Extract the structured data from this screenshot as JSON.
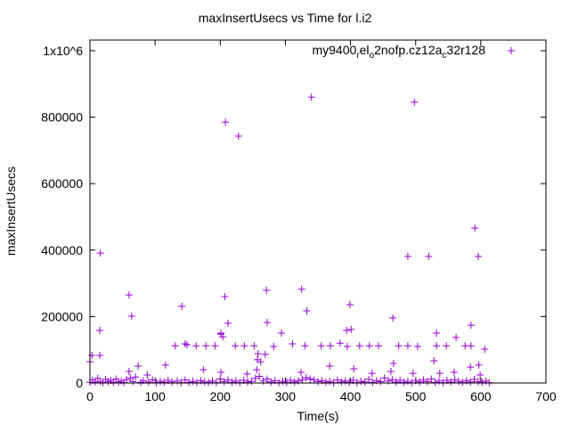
{
  "chart_data": {
    "type": "scatter",
    "title": "maxInsertUsecs vs Time for l.i2",
    "xlabel": "Time(s)",
    "ylabel": "maxInsertUsecs",
    "xlim": [
      0,
      700
    ],
    "ylim": [
      0,
      1032000
    ],
    "x_ticks": [
      0,
      100,
      200,
      300,
      400,
      500,
      600,
      700
    ],
    "x_tick_labels": [
      "0",
      "100",
      "200",
      "300",
      "400",
      "500",
      "600",
      "700"
    ],
    "y_ticks": [
      0,
      200000,
      400000,
      600000,
      800000,
      1000000
    ],
    "y_tick_labels": [
      "0",
      "200000",
      "400000",
      "600000",
      "800000",
      "1x10^6"
    ],
    "grid": false,
    "legend_position": "top-right",
    "series": [
      {
        "name": "my9400_rel_o2nofp.cz12a_c32r128",
        "color": "#9400d3",
        "marker": "plus",
        "points": [
          [
            16,
            391000
          ],
          [
            15,
            158000
          ],
          [
            60,
            265000
          ],
          [
            64,
            201000
          ],
          [
            208,
            785000
          ],
          [
            340,
            860000
          ],
          [
            498,
            845000
          ],
          [
            228,
            743000
          ],
          [
            207,
            260000
          ],
          [
            212,
            180000
          ],
          [
            271,
            279000
          ],
          [
            325,
            282000
          ],
          [
            333,
            217000
          ],
          [
            399,
            236000
          ],
          [
            272,
            182000
          ],
          [
            488,
            381000
          ],
          [
            591,
            466000
          ],
          [
            596,
            381000
          ],
          [
            520,
            381000
          ],
          [
            141,
            231000
          ],
          [
            465,
            196000
          ],
          [
            585,
            174000
          ],
          [
            532,
            150000
          ],
          [
            294,
            150000
          ],
          [
            201,
            150000
          ],
          [
            204,
            139000
          ],
          [
            394,
            158000
          ],
          [
            401,
            161000
          ],
          [
            562,
            137000
          ],
          [
            606,
            102000
          ],
          [
            131,
            112000
          ],
          [
            146,
            118000
          ],
          [
            149,
            115000
          ],
          [
            163,
            112000
          ],
          [
            178,
            112000
          ],
          [
            192,
            112000
          ],
          [
            223,
            112000
          ],
          [
            237,
            112000
          ],
          [
            252,
            112000
          ],
          [
            282,
            110000
          ],
          [
            311,
            118000
          ],
          [
            330,
            112000
          ],
          [
            355,
            112000
          ],
          [
            369,
            112000
          ],
          [
            384,
            120000
          ],
          [
            395,
            110000
          ],
          [
            414,
            112000
          ],
          [
            429,
            112000
          ],
          [
            443,
            112000
          ],
          [
            474,
            112000
          ],
          [
            488,
            112000
          ],
          [
            503,
            110000
          ],
          [
            532,
            112000
          ],
          [
            547,
            112000
          ],
          [
            576,
            112000
          ],
          [
            585,
            112000
          ],
          [
            0,
            64000
          ],
          [
            3,
            83000
          ],
          [
            15,
            83000
          ],
          [
            74,
            51000
          ],
          [
            88,
            24000
          ],
          [
            116,
            54000
          ],
          [
            174,
            40000
          ],
          [
            201,
            147000
          ],
          [
            257,
            70000
          ],
          [
            258,
            88000
          ],
          [
            269,
            86000
          ],
          [
            262,
            64000
          ],
          [
            256,
            40000
          ],
          [
            368,
            51000
          ],
          [
            405,
            43000
          ],
          [
            466,
            59000
          ],
          [
            528,
            67000
          ],
          [
            584,
            48000
          ],
          [
            597,
            54000
          ],
          [
            559,
            32000
          ],
          [
            496,
            29000
          ],
          [
            433,
            29000
          ],
          [
            241,
            27000
          ],
          [
            60,
            35000
          ],
          [
            201,
            32000
          ],
          [
            324,
            32000
          ],
          [
            462,
            35000
          ],
          [
            537,
            29000
          ],
          [
            599,
            24000
          ],
          [
            0,
            2000
          ],
          [
            4,
            9000
          ],
          [
            8,
            3000
          ],
          [
            12,
            14000
          ],
          [
            16,
            5000
          ],
          [
            20,
            1000
          ],
          [
            24,
            11000
          ],
          [
            28,
            4000
          ],
          [
            32,
            8000
          ],
          [
            36,
            2000
          ],
          [
            40,
            12000
          ],
          [
            44,
            3000
          ],
          [
            48,
            6000
          ],
          [
            52,
            1000
          ],
          [
            56,
            10000
          ],
          [
            62,
            15000
          ],
          [
            66,
            4000
          ],
          [
            70,
            18000
          ],
          [
            78,
            2000
          ],
          [
            82,
            7000
          ],
          [
            90,
            3000
          ],
          [
            96,
            9000
          ],
          [
            102,
            1000
          ],
          [
            108,
            5000
          ],
          [
            114,
            2000
          ],
          [
            120,
            8000
          ],
          [
            126,
            3000
          ],
          [
            134,
            6000
          ],
          [
            140,
            1000
          ],
          [
            146,
            9000
          ],
          [
            152,
            2000
          ],
          [
            158,
            5000
          ],
          [
            164,
            1000
          ],
          [
            170,
            7000
          ],
          [
            176,
            3000
          ],
          [
            182,
            2000
          ],
          [
            188,
            6000
          ],
          [
            194,
            1000
          ],
          [
            200,
            12000
          ],
          [
            206,
            4000
          ],
          [
            212,
            9000
          ],
          [
            218,
            2000
          ],
          [
            224,
            6000
          ],
          [
            230,
            1000
          ],
          [
            236,
            8000
          ],
          [
            242,
            3000
          ],
          [
            248,
            5000
          ],
          [
            254,
            14000
          ],
          [
            260,
            20000
          ],
          [
            266,
            6000
          ],
          [
            272,
            12000
          ],
          [
            278,
            3000
          ],
          [
            284,
            7000
          ],
          [
            290,
            1000
          ],
          [
            296,
            5000
          ],
          [
            302,
            2000
          ],
          [
            308,
            8000
          ],
          [
            314,
            3000
          ],
          [
            320,
            6000
          ],
          [
            326,
            10000
          ],
          [
            332,
            16000
          ],
          [
            338,
            12000
          ],
          [
            344,
            9000
          ],
          [
            350,
            4000
          ],
          [
            356,
            7000
          ],
          [
            362,
            2000
          ],
          [
            368,
            5000
          ],
          [
            374,
            1000
          ],
          [
            380,
            9000
          ],
          [
            386,
            3000
          ],
          [
            392,
            6000
          ],
          [
            398,
            2000
          ],
          [
            404,
            8000
          ],
          [
            410,
            1000
          ],
          [
            416,
            5000
          ],
          [
            422,
            3000
          ],
          [
            428,
            11000
          ],
          [
            434,
            2000
          ],
          [
            440,
            7000
          ],
          [
            446,
            4000
          ],
          [
            452,
            15000
          ],
          [
            458,
            6000
          ],
          [
            464,
            10000
          ],
          [
            470,
            3000
          ],
          [
            476,
            8000
          ],
          [
            482,
            2000
          ],
          [
            488,
            5000
          ],
          [
            494,
            1000
          ],
          [
            500,
            7000
          ],
          [
            506,
            3000
          ],
          [
            512,
            9000
          ],
          [
            518,
            4000
          ],
          [
            524,
            12000
          ],
          [
            530,
            2000
          ],
          [
            536,
            6000
          ],
          [
            542,
            1000
          ],
          [
            548,
            8000
          ],
          [
            554,
            3000
          ],
          [
            560,
            10000
          ],
          [
            566,
            5000
          ],
          [
            572,
            2000
          ],
          [
            578,
            7000
          ],
          [
            584,
            3000
          ],
          [
            590,
            11000
          ],
          [
            596,
            4000
          ],
          [
            602,
            2000
          ],
          [
            608,
            6000
          ],
          [
            613,
            1000
          ]
        ]
      }
    ]
  }
}
